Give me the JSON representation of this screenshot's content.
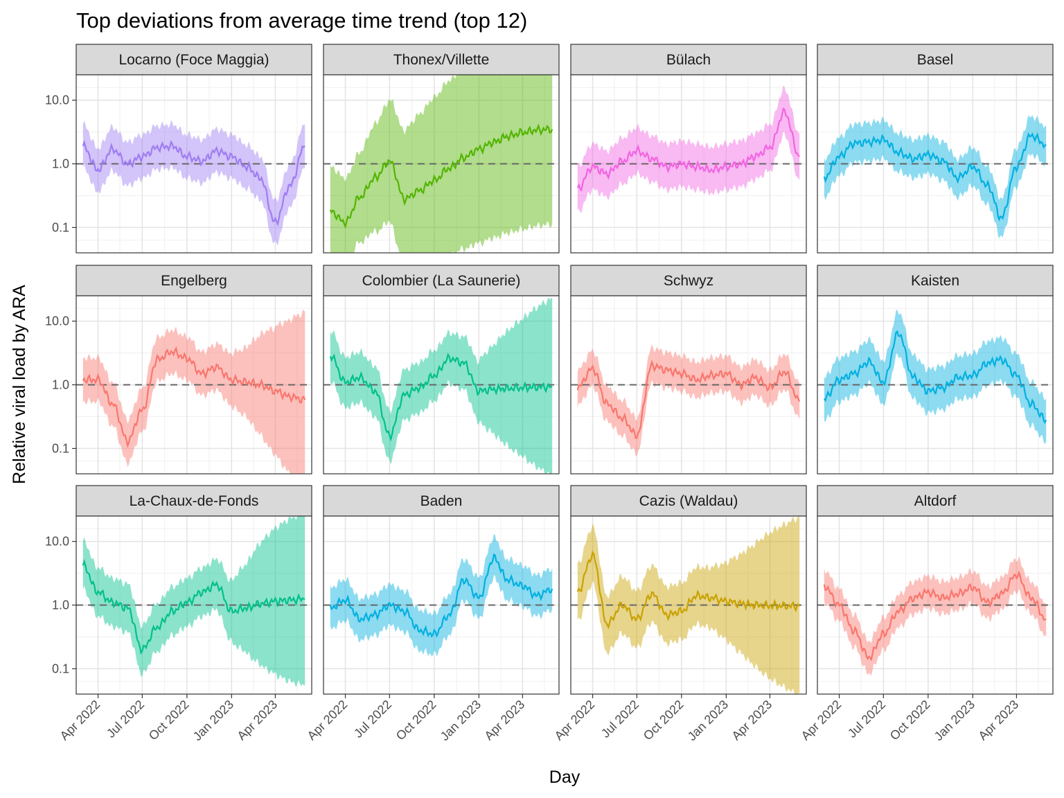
{
  "chart_data": {
    "type": "line",
    "title": "Top deviations from average time trend (top 12)",
    "xlabel": "Day",
    "ylabel": "Relative viral load by ARA",
    "y_scale": "log10",
    "ylim": [
      0.04,
      25
    ],
    "y_ticks": [
      0.1,
      1.0,
      10.0
    ],
    "y_tick_labels": [
      "0.1",
      "1.0",
      "10.0"
    ],
    "reference_line": 1.0,
    "x_range": [
      "2022-02-15",
      "2023-06-15"
    ],
    "x_ticks": [
      "2022-04-01",
      "2022-07-01",
      "2022-10-01",
      "2023-01-01",
      "2023-04-01"
    ],
    "x_tick_labels": [
      "Apr 2022",
      "Jul 2022",
      "Oct 2022",
      "Jan 2023",
      "Apr 2023"
    ],
    "x_dates": [
      "2022-03-01",
      "2022-04-01",
      "2022-05-01",
      "2022-06-01",
      "2022-07-01",
      "2022-08-01",
      "2022-09-01",
      "2022-10-01",
      "2022-11-01",
      "2022-12-01",
      "2023-01-01",
      "2023-02-01",
      "2023-03-01",
      "2023-04-01",
      "2023-05-01",
      "2023-06-01"
    ],
    "facets": [
      {
        "name": "Locarno (Foce Maggia)",
        "color": "#9e7cf2",
        "values": [
          1.9,
          0.8,
          1.7,
          1.0,
          1.3,
          1.8,
          1.9,
          1.3,
          1.1,
          1.6,
          1.3,
          0.9,
          0.6,
          0.12,
          0.45,
          1.9
        ],
        "band": 2.2
      },
      {
        "name": "Thonex/Villette",
        "color": "#53b400",
        "values": [
          0.18,
          0.12,
          0.3,
          0.6,
          1.1,
          0.28,
          0.38,
          0.55,
          0.85,
          1.25,
          1.7,
          2.2,
          2.7,
          3.1,
          3.4,
          3.5
        ],
        "band": [
          5,
          5,
          5,
          7,
          9,
          12,
          16,
          20,
          24,
          27,
          30,
          32,
          33,
          33,
          32,
          31
        ]
      },
      {
        "name": "Bülach",
        "color": "#f263e2",
        "values": [
          0.4,
          0.9,
          0.7,
          1.1,
          1.6,
          1.2,
          0.9,
          1.0,
          0.9,
          0.8,
          0.9,
          1.0,
          1.3,
          1.8,
          6.5,
          1.3
        ],
        "band": 2.3
      },
      {
        "name": "Basel",
        "color": "#00b0e0",
        "values": [
          0.6,
          1.3,
          2.1,
          2.2,
          2.4,
          1.5,
          1.2,
          1.4,
          1.1,
          0.6,
          0.9,
          0.45,
          0.14,
          0.9,
          2.8,
          2.0
        ],
        "band": 2.0
      },
      {
        "name": "Engelberg",
        "color": "#f8766d",
        "values": [
          1.2,
          1.2,
          0.5,
          0.13,
          0.4,
          2.5,
          3.3,
          2.6,
          1.5,
          1.9,
          1.2,
          1.1,
          1.0,
          0.8,
          0.65,
          0.58
        ],
        "band": [
          2.2,
          2.2,
          2.2,
          2.2,
          2.2,
          2.2,
          2.2,
          2.2,
          2.2,
          2.3,
          2.6,
          3.5,
          6,
          10,
          16,
          24
        ]
      },
      {
        "name": "Colombier (La Saunerie)",
        "color": "#00c08b",
        "values": [
          2.9,
          1.1,
          1.3,
          0.8,
          0.16,
          0.7,
          0.9,
          1.4,
          2.6,
          2.2,
          0.8,
          0.85,
          0.88,
          0.9,
          0.92,
          0.93
        ],
        "band": [
          2.5,
          2.5,
          2.5,
          2.5,
          2.5,
          2.5,
          2.5,
          2.5,
          2.5,
          2.6,
          3,
          5,
          8,
          12,
          18,
          25
        ]
      },
      {
        "name": "Schwyz",
        "color": "#f8766d",
        "values": [
          0.9,
          1.8,
          0.5,
          0.3,
          0.16,
          2.0,
          1.7,
          1.5,
          1.2,
          1.4,
          1.5,
          1.0,
          1.3,
          0.9,
          1.6,
          0.55
        ],
        "band": 1.9
      },
      {
        "name": "Kaisten",
        "color": "#00b0e0",
        "values": [
          0.6,
          1.2,
          1.5,
          2.3,
          1.1,
          6.5,
          1.3,
          0.8,
          0.9,
          1.3,
          1.4,
          2.2,
          2.5,
          1.4,
          0.5,
          0.28
        ],
        "band": 2.2
      },
      {
        "name": "La-Chaux-de-Fonds",
        "color": "#00c08b",
        "values": [
          4.2,
          1.6,
          1.1,
          0.9,
          0.2,
          0.45,
          0.8,
          1.1,
          1.6,
          2.1,
          0.8,
          0.9,
          1.05,
          1.15,
          1.2,
          1.25
        ],
        "band": [
          2.4,
          2.4,
          2.4,
          2.4,
          2.4,
          2.4,
          2.4,
          2.4,
          2.4,
          2.5,
          3,
          5,
          9,
          14,
          19,
          23
        ]
      },
      {
        "name": "Baden",
        "color": "#00b0e0",
        "values": [
          0.9,
          1.2,
          0.6,
          0.7,
          1.0,
          0.8,
          0.4,
          0.35,
          0.7,
          2.5,
          1.3,
          5.5,
          2.5,
          2.0,
          1.4,
          1.8
        ],
        "band": 2.1
      },
      {
        "name": "Cazis (Waldau)",
        "color": "#c9a100",
        "values": [
          1.6,
          6.0,
          0.5,
          1.0,
          0.6,
          1.5,
          0.7,
          0.8,
          1.4,
          1.3,
          1.15,
          1.05,
          1.0,
          0.98,
          0.97,
          0.96
        ],
        "band": [
          2.8,
          2.8,
          2.8,
          2.8,
          2.8,
          2.8,
          2.8,
          2.8,
          2.8,
          3,
          4,
          6,
          9,
          14,
          19,
          25
        ]
      },
      {
        "name": "Altdorf",
        "color": "#f8766d",
        "values": [
          2.0,
          1.0,
          0.4,
          0.15,
          0.35,
          0.8,
          1.3,
          1.6,
          1.3,
          1.5,
          1.9,
          1.1,
          1.5,
          3.0,
          1.3,
          0.6
        ],
        "band": 1.8
      }
    ]
  }
}
